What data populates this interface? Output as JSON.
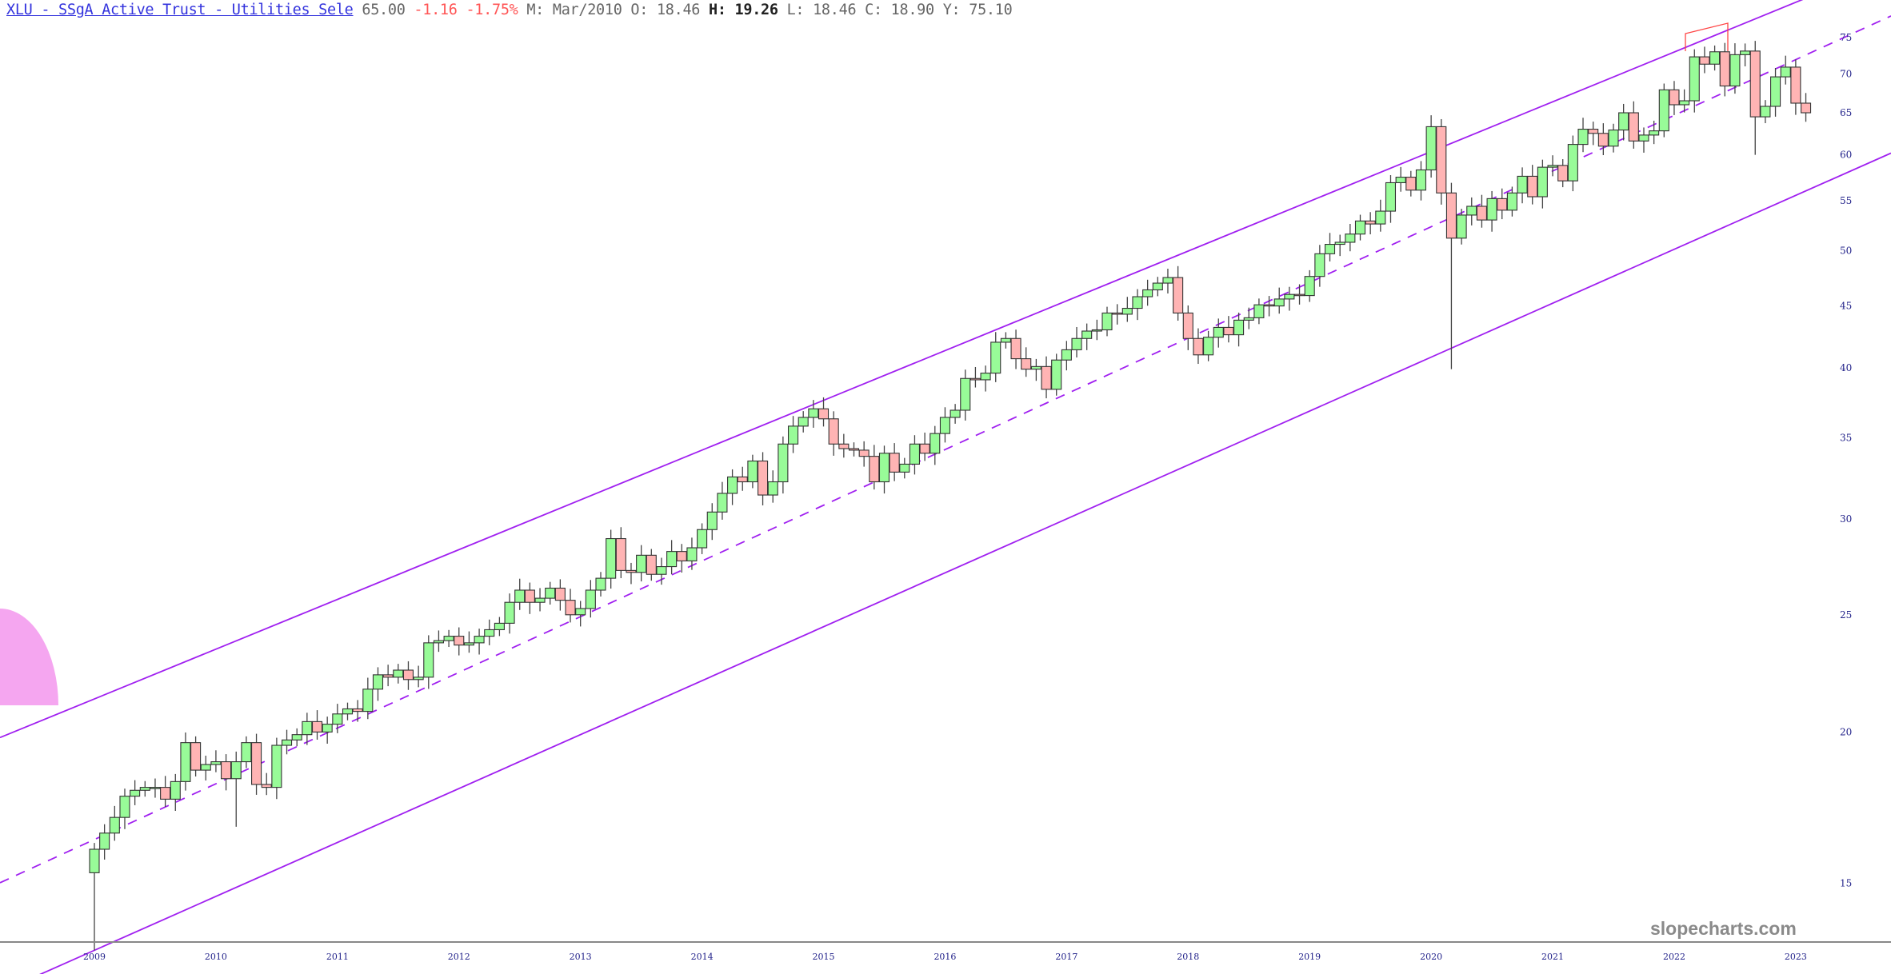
{
  "header": {
    "title": "XLU - SSgA Active Trust - Utilities Sele",
    "last": "65.00",
    "change": "-1.16",
    "change_pct": "-1.75%",
    "period_label": "M: Mar/2010",
    "open_label": "O:",
    "open": "18.46",
    "high_label": "H:",
    "high": "19.26",
    "low_label": "L:",
    "low": "18.46",
    "close_label": "C:",
    "close": "18.90",
    "y_label": "Y:",
    "y_value": "75.10"
  },
  "watermark": "slopecharts.com",
  "colors": {
    "up": "#98fb98",
    "down": "#ffb4b4",
    "trend": "#a020f0",
    "annotation": "#ff4444",
    "arc": "#f5a6f0"
  },
  "chart_data": {
    "type": "candlestick",
    "interval": "monthly",
    "scale": "log",
    "start": "Jan/2009",
    "ylim": [
      13,
      78
    ],
    "yticks": [
      15,
      20,
      25,
      30,
      35,
      40,
      45,
      50,
      55,
      60,
      65,
      70,
      75
    ],
    "xticks": [
      "2009",
      "2010",
      "2011",
      "2012",
      "2013",
      "2014",
      "2015",
      "2016",
      "2017",
      "2018",
      "2019",
      "2020",
      "2021",
      "2022",
      "2023"
    ],
    "first_open": 15.3,
    "close": [
      16.0,
      16.5,
      17.0,
      17.7,
      17.9,
      18.0,
      18.0,
      17.6,
      18.2,
      19.6,
      18.6,
      18.8,
      18.9,
      18.3,
      18.9,
      19.6,
      18.1,
      18.0,
      19.5,
      19.7,
      19.9,
      20.4,
      20.0,
      20.3,
      20.7,
      20.9,
      20.8,
      21.7,
      22.3,
      22.2,
      22.5,
      22.1,
      22.2,
      23.7,
      23.8,
      24.0,
      23.6,
      23.7,
      24.0,
      24.3,
      24.6,
      25.6,
      26.2,
      25.6,
      25.8,
      26.3,
      25.7,
      25.0,
      25.3,
      26.2,
      26.8,
      28.9,
      27.2,
      27.1,
      28.0,
      27.0,
      27.4,
      28.2,
      27.7,
      28.4,
      29.4,
      30.4,
      31.5,
      32.5,
      32.2,
      33.5,
      31.4,
      32.2,
      34.6,
      35.8,
      36.4,
      37.0,
      36.3,
      34.6,
      34.3,
      34.2,
      33.8,
      32.2,
      34.0,
      32.8,
      33.3,
      34.6,
      34.0,
      35.3,
      36.4,
      36.9,
      39.2,
      39.1,
      39.6,
      42.0,
      42.3,
      40.7,
      39.9,
      40.1,
      38.4,
      40.6,
      41.4,
      42.3,
      42.9,
      43.0,
      44.4,
      44.3,
      44.8,
      45.8,
      46.4,
      47.0,
      47.5,
      44.4,
      42.3,
      41.0,
      42.4,
      43.2,
      42.6,
      43.8,
      44.0,
      45.1,
      45.0,
      45.6,
      46.0,
      45.9,
      47.6,
      49.7,
      50.6,
      50.8,
      51.6,
      52.9,
      52.6,
      53.9,
      56.9,
      57.5,
      56.1,
      58.3,
      63.3,
      55.8,
      51.2,
      53.5,
      54.4,
      53.0,
      55.2,
      54.0,
      55.8,
      57.6,
      55.4,
      58.6,
      58.8,
      57.1,
      61.2,
      63.0,
      62.5,
      61.0,
      62.9,
      65.0,
      61.6,
      62.3,
      62.8,
      67.9,
      66.0,
      66.5,
      72.3,
      71.3,
      73.0,
      68.4,
      72.6,
      73.1,
      64.5,
      65.8,
      69.6,
      70.9,
      66.2,
      65.0
    ],
    "notable_lows": {
      "0": 13.2,
      "14": 16.7,
      "134": 39.9,
      "164": 60.0
    },
    "trendlines": [
      {
        "name": "upper-channel",
        "style": "solid",
        "from": [
          "2009-01",
          21.3
        ],
        "to": [
          "2022-07",
          76.5
        ]
      },
      {
        "name": "midline",
        "style": "dashed",
        "from": [
          "2009-01",
          16.3
        ],
        "to": [
          "2023-03",
          73.2
        ]
      },
      {
        "name": "lower-channel",
        "style": "solid",
        "from": [
          "2009-01",
          13.2
        ],
        "to": [
          "2023-03",
          56.5
        ]
      }
    ]
  }
}
